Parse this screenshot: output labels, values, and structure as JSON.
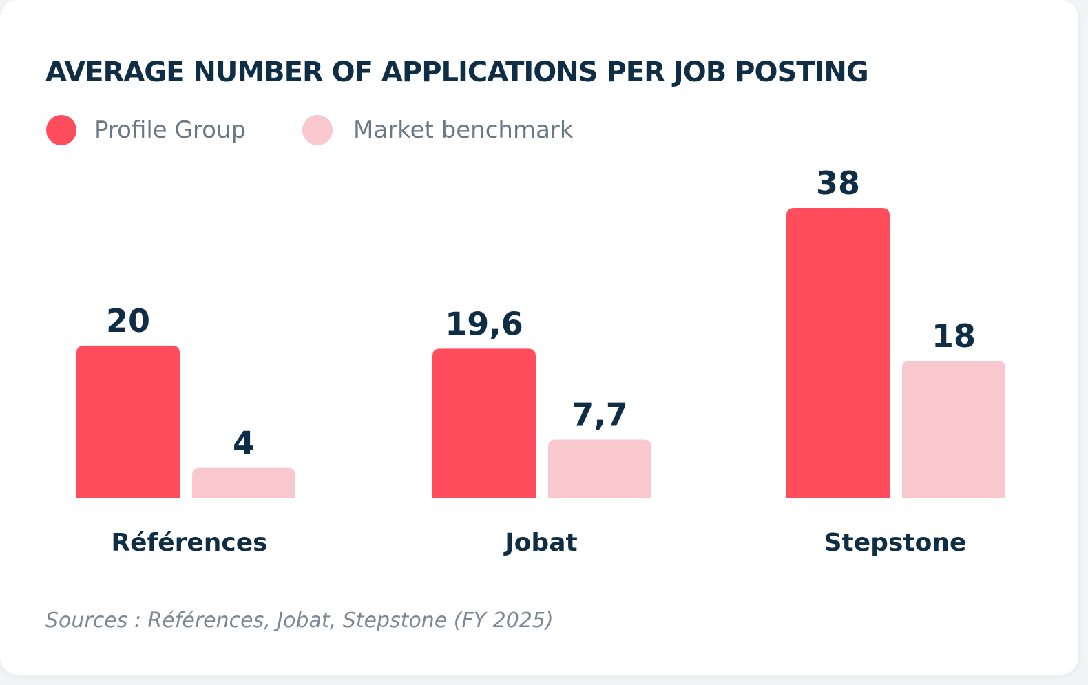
{
  "title": "AVERAGE NUMBER OF APPLICATIONS PER JOB POSTING",
  "source": "Sources : Références, Jobat, Stepstone (FY 2025)",
  "colors": {
    "primary": "#ff4d5e",
    "benchmark": "#f9c8cf",
    "text_dark": "#0f2d44",
    "text_muted": "#6a7785"
  },
  "legend": [
    {
      "label": "Profile Group",
      "color": "#ff4d5e"
    },
    {
      "label": "Market benchmark",
      "color": "#f9c8cf"
    }
  ],
  "chart_data": {
    "type": "bar",
    "title": "AVERAGE NUMBER OF APPLICATIONS PER JOB POSTING",
    "categories": [
      "Références",
      "Jobat",
      "Stepstone"
    ],
    "series": [
      {
        "name": "Profile Group",
        "values": [
          20,
          19.6,
          38
        ],
        "labels": [
          "20",
          "19,6",
          "38"
        ],
        "color": "#ff4d5e"
      },
      {
        "name": "Market benchmark",
        "values": [
          4,
          7.7,
          18
        ],
        "labels": [
          "4",
          "7,7",
          "18"
        ],
        "color": "#f9c8cf"
      }
    ],
    "xlabel": "",
    "ylabel": "",
    "ylim": [
      0,
      38
    ],
    "grid": false,
    "legend_position": "top-left"
  }
}
